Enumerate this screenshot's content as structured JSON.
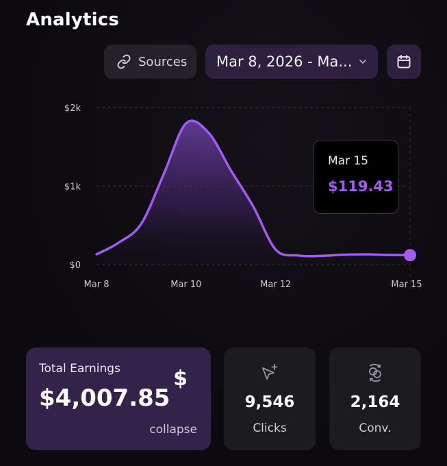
{
  "header": {
    "title": "Analytics"
  },
  "toolbar": {
    "sources_label": "Sources",
    "date_range": "Mar 8, 2026 - Ma...",
    "icons": {
      "sources": "link-icon",
      "date_dropdown": "chevron-down-icon",
      "calendar": "calendar-icon"
    }
  },
  "chart_data": {
    "type": "area",
    "title": "",
    "xlabel": "",
    "ylabel": "",
    "x_tick_labels": [
      "Mar 8",
      "Mar 10",
      "Mar 12",
      "Mar 15"
    ],
    "y_tick_labels": [
      "$0",
      "$1k",
      "$2k"
    ],
    "ylim": [
      0,
      2000
    ],
    "series": [
      {
        "name": "Earnings",
        "x_days": [
          8,
          8.5,
          9,
          9.5,
          10,
          10.5,
          11,
          11.5,
          12,
          12.5,
          13,
          13.5,
          14,
          14.5,
          15
        ],
        "values": [
          130,
          280,
          520,
          1150,
          1800,
          1680,
          1200,
          740,
          190,
          115,
          110,
          125,
          130,
          122,
          119.43
        ]
      }
    ],
    "highlight": {
      "label": "Mar 15",
      "value_text": "$119.43",
      "value": 119.43
    },
    "grid": true
  },
  "stats": {
    "earnings": {
      "label": "Total Earnings",
      "currency_symbol": "$",
      "amount": "$4,007.85",
      "action": "collapse"
    },
    "clicks": {
      "value": "9,546",
      "label": "Clicks",
      "icon": "cursor-plus-icon"
    },
    "conversions": {
      "value": "2,164",
      "label": "Conv.",
      "icon": "link-refresh-icon"
    }
  },
  "colors": {
    "accent": "#a35cf0",
    "line": "#a05cf2",
    "card_earnings_bg": "#33224a",
    "card_bg": "#1c1b1f"
  }
}
